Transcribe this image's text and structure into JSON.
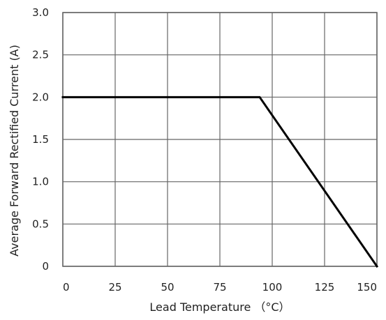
{
  "chart_data": {
    "type": "line",
    "title": "",
    "xlabel": "Lead Temperature （°C）",
    "ylabel": "Average Forward Rectified Current (A)",
    "xlim": [
      0,
      150
    ],
    "ylim": [
      0,
      3.0
    ],
    "x_ticks": [
      0,
      25,
      50,
      75,
      100,
      125,
      150
    ],
    "y_ticks": [
      0,
      0.5,
      1.0,
      1.5,
      2.0,
      2.5,
      3.0
    ],
    "x_tick_labels": [
      "0",
      "25",
      "50",
      "75",
      "100",
      "125",
      "150"
    ],
    "y_tick_labels": [
      "0",
      "0.5",
      "1.0",
      "1.5",
      "2.0",
      "2.5",
      "3.0"
    ],
    "grid": true,
    "legend": "none",
    "colors": {
      "line": "#000000",
      "grid": "#666666",
      "text": "#222222"
    },
    "series": [
      {
        "x": [
          0,
          94,
          150
        ],
        "y": [
          2.0,
          2.0,
          0
        ]
      }
    ]
  }
}
